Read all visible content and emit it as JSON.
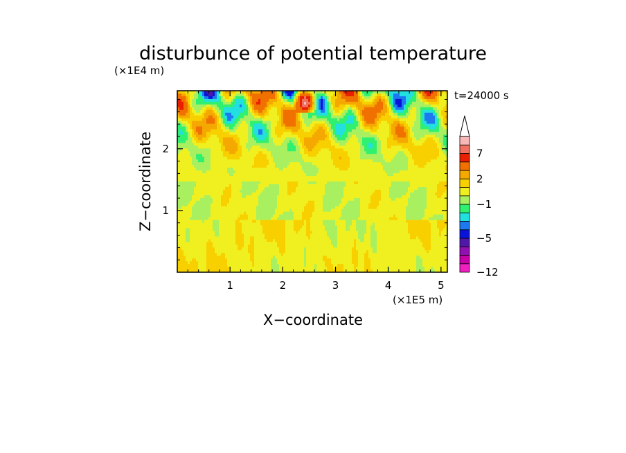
{
  "chart_data": {
    "type": "heatmap",
    "title": "disturbunce of potential temperature",
    "xlabel": "X−coordinate",
    "ylabel": "Z−coordinate",
    "x_unit": "(×1E5 m)",
    "y_unit": "(×1E4 m)",
    "annotation": "t=24000 s",
    "xlim": [
      0,
      5.12
    ],
    "ylim": [
      0,
      2.94
    ],
    "x_ticks": [
      {
        "v": 1,
        "label": "1"
      },
      {
        "v": 2,
        "label": "2"
      },
      {
        "v": 3,
        "label": "3"
      },
      {
        "v": 4,
        "label": "4"
      },
      {
        "v": 5,
        "label": "5"
      }
    ],
    "y_ticks": [
      {
        "v": 1,
        "label": "1"
      },
      {
        "v": 2,
        "label": "2"
      }
    ],
    "colorbar": {
      "levels": [
        -12,
        -10,
        -8,
        -6,
        -5,
        -4,
        -3,
        -2,
        -1,
        0,
        1,
        2,
        3,
        5,
        7,
        9,
        11
      ],
      "colors": [
        "#f020c0",
        "#c800a8",
        "#9010b0",
        "#5018a8",
        "#0a14d8",
        "#1e78f0",
        "#22e0e0",
        "#30f070",
        "#a8f060",
        "#f0f020",
        "#f8d000",
        "#f4a800",
        "#f07000",
        "#e82000",
        "#f07060",
        "#f8b8b8"
      ],
      "extend_top_color": "#ffffff",
      "labels": [
        {
          "v": -12,
          "label": "−12"
        },
        {
          "v": -5,
          "label": "−5"
        },
        {
          "v": -1,
          "label": "−1"
        },
        {
          "v": 2,
          "label": "2"
        },
        {
          "v": 7,
          "label": "7"
        }
      ]
    },
    "field_description_layers": [
      {
        "z_range": [
          0.0,
          0.85
        ],
        "typical": 0.7
      },
      {
        "z_range": [
          0.85,
          1.5
        ],
        "typical": 0.2
      },
      {
        "z_range": [
          1.5,
          2.94
        ],
        "typical": "strong alternating"
      }
    ]
  }
}
